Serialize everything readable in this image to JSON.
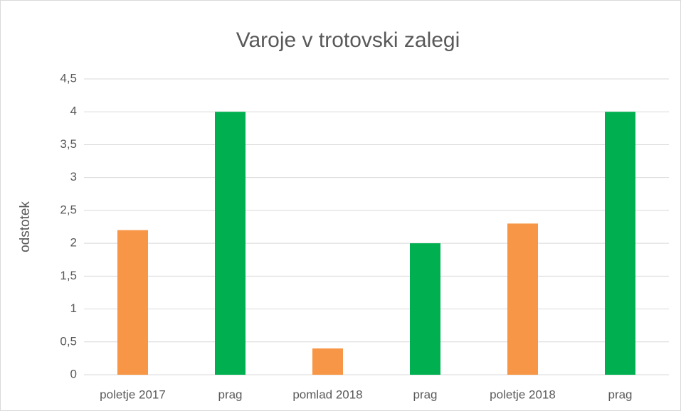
{
  "chart_data": {
    "type": "bar",
    "title": "Varoje v trotovski zalegi",
    "y_label": "odstotek",
    "categories": [
      "poletje 2017",
      "prag",
      "pomlad 2018",
      "prag",
      "poletje 2018",
      "prag"
    ],
    "values": [
      2.2,
      4,
      0.4,
      2,
      2.3,
      4
    ],
    "colors": [
      "#f79646",
      "#00b050",
      "#f79646",
      "#00b050",
      "#f79646",
      "#00b050"
    ],
    "ylim": [
      0,
      4.5
    ],
    "yticks": [
      0,
      {
        "value": 0.5,
        "label": "0,5"
      },
      1,
      {
        "value": 1.5,
        "label": "1,5"
      },
      2,
      {
        "value": 2.5,
        "label": "2,5"
      },
      3,
      {
        "value": 3.5,
        "label": "3,5"
      },
      4,
      {
        "value": 4.5,
        "label": "4,5"
      }
    ],
    "grid": true
  }
}
